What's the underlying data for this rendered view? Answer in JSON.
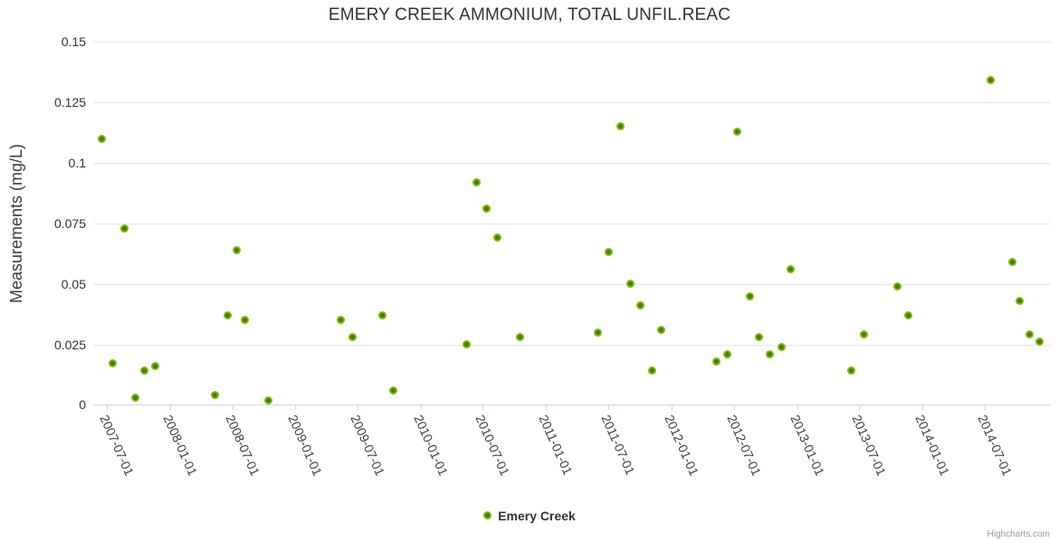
{
  "title": "EMERY CREEK AMMONIUM, TOTAL UNFIL.REAC",
  "legend": {
    "label": "Emery Creek"
  },
  "credit": "Highcharts.com",
  "colors": {
    "marker_outer": "#82ba00",
    "marker_inner": "#3e7d00",
    "gridline": "#e6e6e6",
    "axis_line": "#ccd6eb",
    "text": "#333333",
    "credit_text": "#999999"
  },
  "chart_data": {
    "type": "scatter",
    "title": "EMERY CREEK AMMONIUM, TOTAL UNFIL.REAC",
    "xlabel": "",
    "ylabel": "Measurements (mg/L)",
    "ylim": [
      0,
      0.15
    ],
    "yticks": [
      0,
      0.025,
      0.05,
      0.075,
      0.1,
      0.125,
      0.15
    ],
    "ytick_labels": [
      "0",
      "0.025",
      "0.05",
      "0.075",
      "0.1",
      "0.125",
      "0.15"
    ],
    "xticks": [
      "2007-07-01",
      "2008-01-01",
      "2008-07-01",
      "2009-01-01",
      "2009-07-01",
      "2010-01-01",
      "2010-07-01",
      "2011-01-01",
      "2011-07-01",
      "2012-01-01",
      "2012-07-01",
      "2013-01-01",
      "2013-07-01",
      "2014-01-01",
      "2014-07-01"
    ],
    "xlim": [
      "2007-05-23",
      "2015-01-10"
    ],
    "grid": true,
    "legend_position": "bottom-center",
    "series": [
      {
        "name": "Emery Creek",
        "points": [
          [
            "2007-06-18",
            0.11
          ],
          [
            "2007-07-19",
            0.017
          ],
          [
            "2007-08-23",
            0.073
          ],
          [
            "2007-09-23",
            0.003
          ],
          [
            "2007-10-19",
            0.014
          ],
          [
            "2007-11-21",
            0.016
          ],
          [
            "2008-05-13",
            0.004
          ],
          [
            "2008-06-18",
            0.037
          ],
          [
            "2008-07-14",
            0.064
          ],
          [
            "2008-08-08",
            0.035
          ],
          [
            "2008-10-15",
            0.002
          ],
          [
            "2009-05-12",
            0.035
          ],
          [
            "2009-06-16",
            0.028
          ],
          [
            "2009-09-12",
            0.037
          ],
          [
            "2009-10-12",
            0.006
          ],
          [
            "2010-05-15",
            0.025
          ],
          [
            "2010-06-13",
            0.092
          ],
          [
            "2010-07-11",
            0.081
          ],
          [
            "2010-08-13",
            0.069
          ],
          [
            "2010-10-18",
            0.028
          ],
          [
            "2011-05-31",
            0.03
          ],
          [
            "2011-07-03",
            0.063
          ],
          [
            "2011-08-06",
            0.115
          ],
          [
            "2011-09-04",
            0.05
          ],
          [
            "2011-10-03",
            0.041
          ],
          [
            "2011-11-05",
            0.014
          ],
          [
            "2011-12-03",
            0.031
          ],
          [
            "2012-05-10",
            0.018
          ],
          [
            "2012-06-12",
            0.021
          ],
          [
            "2012-07-10",
            0.113
          ],
          [
            "2012-08-18",
            0.045
          ],
          [
            "2012-09-13",
            0.028
          ],
          [
            "2012-10-14",
            0.021
          ],
          [
            "2012-11-16",
            0.024
          ],
          [
            "2012-12-13",
            0.056
          ],
          [
            "2013-06-08",
            0.014
          ],
          [
            "2013-07-14",
            0.029
          ],
          [
            "2013-10-21",
            0.049
          ],
          [
            "2013-11-21",
            0.037
          ],
          [
            "2014-07-18",
            0.134
          ],
          [
            "2014-09-21",
            0.059
          ],
          [
            "2014-10-10",
            0.043
          ],
          [
            "2014-11-10",
            0.029
          ],
          [
            "2014-12-09",
            0.026
          ]
        ]
      }
    ]
  }
}
